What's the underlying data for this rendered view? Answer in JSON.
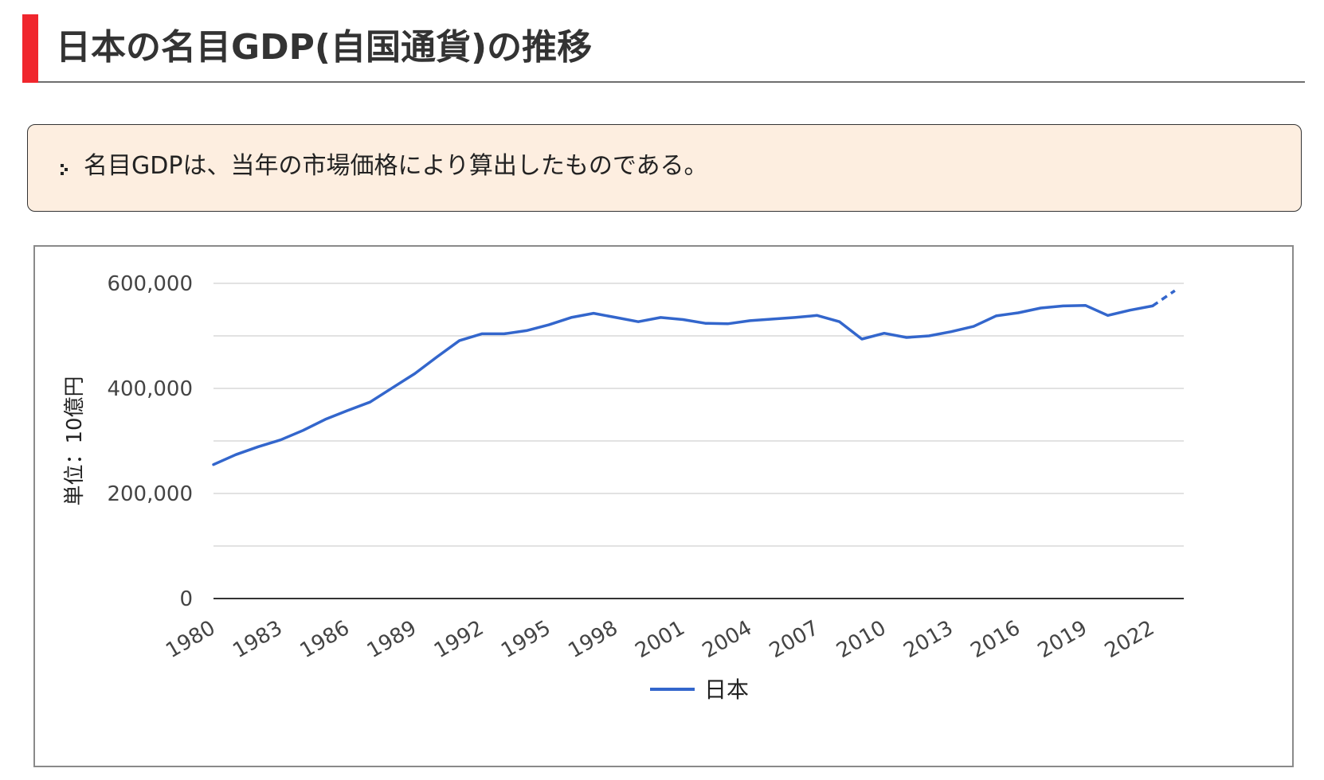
{
  "heading": {
    "title": "日本の名目GDP(自国通貨)の推移"
  },
  "note": {
    "text": "名目GDPは、当年の市場価格により算出したものである。"
  },
  "chart_data": {
    "type": "line",
    "title": "",
    "xlabel": "",
    "ylabel": "単位：10億円",
    "ylim": [
      0,
      600000
    ],
    "yticks": [
      0,
      200000,
      400000,
      600000
    ],
    "ytick_labels": [
      "0",
      "200,000",
      "400,000",
      "600,000"
    ],
    "xticks": [
      1980,
      1983,
      1986,
      1989,
      1992,
      1995,
      1998,
      2001,
      2004,
      2007,
      2010,
      2013,
      2016,
      2019,
      2022
    ],
    "xtick_labels": [
      "1980",
      "1983",
      "1986",
      "1989",
      "1992",
      "1995",
      "1998",
      "2001",
      "2004",
      "2007",
      "2010",
      "2013",
      "2016",
      "2019",
      "2022"
    ],
    "xlim": [
      1980,
      2024
    ],
    "grid": true,
    "legend_position": "bottom",
    "estimate_from": 2023,
    "series": [
      {
        "name": "日本",
        "color": "#3366cc",
        "x": [
          1980,
          1981,
          1982,
          1983,
          1984,
          1985,
          1986,
          1987,
          1988,
          1989,
          1990,
          1991,
          1992,
          1993,
          1994,
          1995,
          1996,
          1997,
          1998,
          1999,
          2000,
          2001,
          2002,
          2003,
          2004,
          2005,
          2006,
          2007,
          2008,
          2009,
          2010,
          2011,
          2012,
          2013,
          2014,
          2015,
          2016,
          2017,
          2018,
          2019,
          2020,
          2021,
          2022,
          2023
        ],
        "y": [
          255000,
          274000,
          289000,
          302000,
          320000,
          341000,
          358000,
          374000,
          401000,
          428000,
          460000,
          491000,
          504000,
          504000,
          510000,
          521000,
          535000,
          543000,
          535000,
          527000,
          535000,
          531000,
          524000,
          523000,
          529000,
          532000,
          535000,
          539000,
          527000,
          494000,
          505000,
          497000,
          500000,
          508000,
          518000,
          538000,
          544000,
          553000,
          557000,
          558000,
          539000,
          549000,
          557000,
          586000
        ]
      }
    ]
  }
}
